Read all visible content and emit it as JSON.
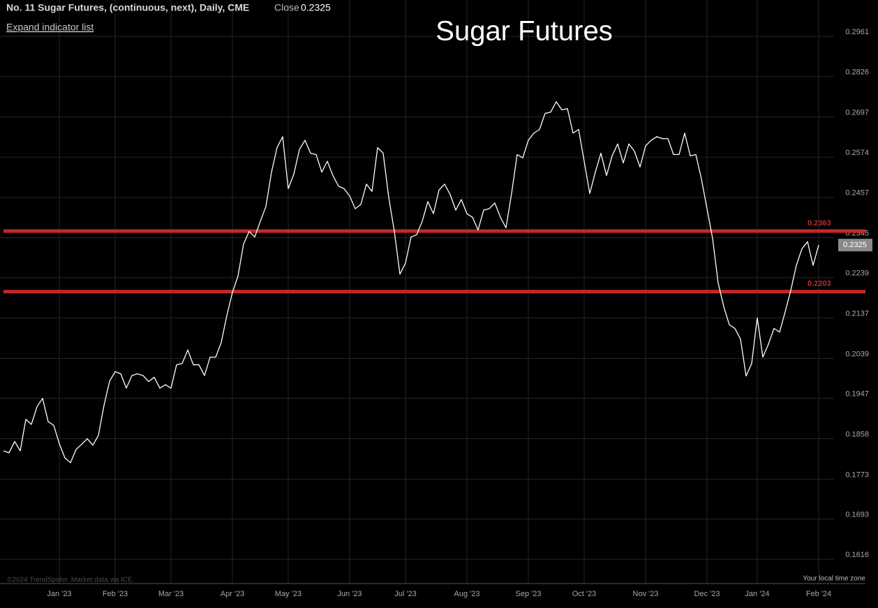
{
  "header": {
    "instrument": "No. 11 Sugar Futures, (continuous, next), Daily, CME",
    "close_label": "Close",
    "expand": "Expand indicator list"
  },
  "footer": {
    "copyright": "©2024 TrendSpider. Market data via ICE.",
    "timezone": "Your local time zone"
  },
  "chart_data": {
    "type": "line",
    "title": "Sugar Futures",
    "log_scale": true,
    "grid": true,
    "color": "#ffffff",
    "categories": [
      null,
      null,
      null,
      null,
      null,
      null,
      null,
      null,
      null,
      null,
      "Jan '23",
      null,
      null,
      null,
      null,
      null,
      null,
      null,
      null,
      null,
      "Feb '23",
      null,
      null,
      null,
      null,
      null,
      null,
      null,
      null,
      null,
      "Mar '23",
      null,
      null,
      null,
      null,
      null,
      null,
      null,
      null,
      null,
      null,
      "Apr '23",
      null,
      null,
      null,
      null,
      null,
      null,
      null,
      null,
      null,
      "May '23",
      null,
      null,
      null,
      null,
      null,
      null,
      null,
      null,
      null,
      null,
      "Jun '23",
      null,
      null,
      null,
      null,
      null,
      null,
      null,
      null,
      null,
      "Jul '23",
      null,
      null,
      null,
      null,
      null,
      null,
      null,
      null,
      null,
      null,
      "Aug '23",
      null,
      null,
      null,
      null,
      null,
      null,
      null,
      null,
      null,
      null,
      "Sep '23",
      null,
      null,
      null,
      null,
      null,
      null,
      null,
      null,
      null,
      "Oct '23",
      null,
      null,
      null,
      null,
      null,
      null,
      null,
      null,
      null,
      null,
      "Nov '23",
      null,
      null,
      null,
      null,
      null,
      null,
      null,
      null,
      null,
      null,
      "Dec '23",
      null,
      null,
      null,
      null,
      null,
      null,
      null,
      null,
      "Jan '24",
      null,
      null,
      null,
      null,
      null,
      null,
      null,
      null,
      null,
      null,
      "Feb '24"
    ],
    "values": [
      0.1832,
      0.1828,
      0.1852,
      0.1832,
      0.19,
      0.1889,
      0.1928,
      0.1947,
      0.1895,
      0.1887,
      0.1847,
      0.1817,
      0.1807,
      0.1835,
      0.1846,
      0.1858,
      0.1844,
      0.1865,
      0.1931,
      0.1986,
      0.2008,
      0.2003,
      0.197,
      0.1999,
      0.2003,
      0.1999,
      0.1985,
      0.1995,
      0.197,
      0.1978,
      0.197,
      0.2024,
      0.2027,
      0.2059,
      0.2024,
      0.2024,
      0.1999,
      0.2042,
      0.2042,
      0.2077,
      0.2143,
      0.2201,
      0.2243,
      0.2328,
      0.2362,
      0.2347,
      0.239,
      0.2431,
      0.253,
      0.2603,
      0.2636,
      0.2482,
      0.2524,
      0.2597,
      0.2625,
      0.2586,
      0.2582,
      0.253,
      0.2562,
      0.252,
      0.2489,
      0.2482,
      0.2461,
      0.2425,
      0.2437,
      0.2495,
      0.2474,
      0.2603,
      0.2586,
      0.2457,
      0.2362,
      0.2248,
      0.2277,
      0.2347,
      0.2353,
      0.239,
      0.2445,
      0.2411,
      0.2478,
      0.2495,
      0.2465,
      0.2421,
      0.2451,
      0.2411,
      0.2401,
      0.2366,
      0.2421,
      0.2425,
      0.2441,
      0.2401,
      0.2372,
      0.2468,
      0.2582,
      0.2572,
      0.2625,
      0.2647,
      0.2658,
      0.2708,
      0.2712,
      0.2745,
      0.2719,
      0.2723,
      0.2647,
      0.2658,
      0.2562,
      0.2468,
      0.253,
      0.2586,
      0.252,
      0.2578,
      0.2614,
      0.2557,
      0.2614,
      0.2592,
      0.2545,
      0.2608,
      0.2625,
      0.2636,
      0.263,
      0.263,
      0.2582,
      0.2582,
      0.2647,
      0.2578,
      0.2582,
      0.251,
      0.2425,
      0.2343,
      0.2225,
      0.2165,
      0.212,
      0.2111,
      0.2085,
      0.1998,
      0.2027,
      0.2137,
      0.2042,
      0.2073,
      0.2111,
      0.2102,
      0.2152,
      0.2206,
      0.2271,
      0.2315,
      0.2334,
      0.2271,
      0.2325
    ],
    "ylim": [
      0.1571,
      0.3088
    ],
    "yticks": [
      0.2961,
      0.2826,
      0.2697,
      0.2574,
      0.2457,
      0.2345,
      0.2239,
      0.2137,
      0.2039,
      0.1947,
      0.1858,
      0.1773,
      0.1693,
      0.1616
    ],
    "hlines": [
      0.2363,
      0.2203
    ],
    "hline_color": "#c62828"
  }
}
